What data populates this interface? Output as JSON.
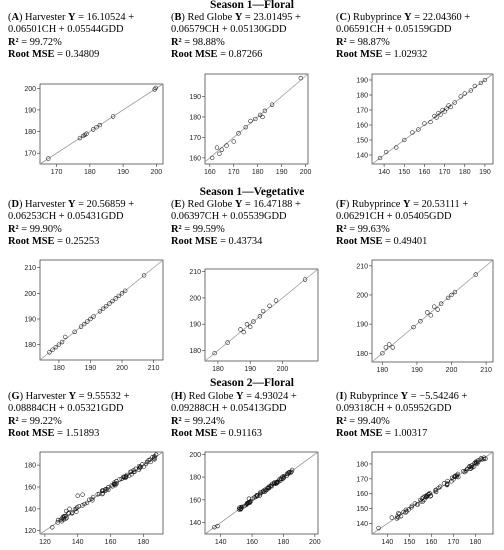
{
  "sections": [
    "Season 1—Floral",
    "Season 1—Vegetative",
    "Season 2—Floral"
  ],
  "chart_data": [
    {
      "id": "A",
      "letter": "A",
      "type": "scatter",
      "cultivar": "Harvester",
      "equation": "16.10524 + 0.06501CH + 0.05544GDD",
      "r2": "99.72%",
      "rmse": "0.34809",
      "xlim": [
        165,
        202
      ],
      "ylim": [
        165,
        202
      ],
      "xticks": [
        170,
        180,
        190,
        200
      ],
      "yticks": [
        170,
        180,
        190,
        200
      ],
      "x": [
        167.5,
        177,
        178,
        178.5,
        179,
        181,
        182,
        183,
        187,
        199.5,
        199.8
      ],
      "y": [
        167.5,
        177,
        178,
        178.5,
        179,
        181,
        182,
        183,
        187,
        199.5,
        200.2
      ]
    },
    {
      "id": "B",
      "letter": "B",
      "type": "scatter",
      "cultivar": "Red Globe",
      "equation": "23.01495 + 0.06579CH + 0.05130GDD",
      "r2": "98.88%",
      "rmse": "0.87266",
      "xlim": [
        158,
        201
      ],
      "ylim": [
        157,
        201
      ],
      "xticks": [
        160,
        170,
        180,
        190,
        200
      ],
      "yticks": [
        160,
        170,
        180,
        190
      ],
      "x": [
        161,
        163,
        164,
        165,
        167,
        170,
        172,
        175,
        177,
        179,
        181,
        182,
        183,
        186,
        198
      ],
      "y": [
        160,
        165,
        162,
        164,
        166,
        168,
        172,
        175,
        178,
        179,
        181,
        180,
        183,
        186,
        199
      ]
    },
    {
      "id": "C",
      "letter": "C",
      "type": "scatter",
      "cultivar": "Rubyprince",
      "equation": "22.04360 + 0.06591CH + 0.05159GDD",
      "r2": "98.87%",
      "rmse": "1.02932",
      "xlim": [
        134,
        194
      ],
      "ylim": [
        134,
        194
      ],
      "xticks": [
        140,
        150,
        160,
        170,
        180,
        190
      ],
      "yticks": [
        140,
        150,
        160,
        170,
        180,
        190
      ],
      "x": [
        138,
        141,
        146,
        150,
        154,
        157,
        160,
        163,
        165,
        166,
        167,
        168,
        169,
        170,
        171,
        172,
        173,
        175,
        178,
        180,
        183,
        185,
        188,
        190
      ],
      "y": [
        138,
        142,
        145,
        150,
        155,
        157,
        161,
        162,
        166,
        165,
        168,
        167,
        170,
        169,
        171,
        173,
        172,
        175,
        179,
        181,
        183,
        186,
        188,
        190
      ]
    },
    {
      "id": "D",
      "letter": "D",
      "type": "scatter",
      "cultivar": "Harvester",
      "equation": "20.56859 + 0.06253CH + 0.05431GDD",
      "r2": "99.90%",
      "rmse": "0.25253",
      "xlim": [
        174,
        213
      ],
      "ylim": [
        174,
        213
      ],
      "xticks": [
        180,
        190,
        200,
        210
      ],
      "yticks": [
        180,
        190,
        200,
        210
      ],
      "x": [
        177,
        178,
        179,
        180,
        181,
        182,
        185,
        187,
        188,
        189,
        190,
        191,
        193,
        194,
        195,
        196,
        197,
        198,
        199,
        200,
        201,
        207
      ],
      "y": [
        177,
        178,
        179,
        180,
        181,
        183,
        185,
        187,
        188,
        189,
        190,
        191,
        193,
        194,
        195,
        196,
        197,
        198,
        199,
        200,
        201,
        207
      ]
    },
    {
      "id": "E",
      "letter": "E",
      "type": "scatter",
      "cultivar": "Red Globe",
      "equation": "16.47188 + 0.06397CH + 0.05539GDD",
      "r2": "99.59%",
      "rmse": "0.43734",
      "xlim": [
        176,
        211
      ],
      "ylim": [
        176,
        211
      ],
      "xticks": [
        180,
        190,
        200
      ],
      "yticks": [
        180,
        190,
        200,
        210
      ],
      "x": [
        179,
        183,
        187,
        188,
        189,
        190,
        191,
        193,
        194,
        196,
        198,
        207
      ],
      "y": [
        179,
        183,
        188,
        187,
        190,
        189,
        191,
        193,
        195,
        197,
        199,
        207
      ]
    },
    {
      "id": "F",
      "letter": "F",
      "type": "scatter",
      "cultivar": "Rubyprince",
      "equation": "20.53111 + 0.06291CH + 0.05405GDD",
      "r2": "99.63%",
      "rmse": "0.49401",
      "xlim": [
        177,
        212
      ],
      "ylim": [
        177,
        212
      ],
      "xticks": [
        180,
        190,
        200,
        210
      ],
      "yticks": [
        180,
        190,
        200,
        210
      ],
      "x": [
        180,
        181,
        182,
        183,
        189,
        191,
        193,
        194,
        195,
        196,
        197,
        199,
        200,
        201,
        207
      ],
      "y": [
        180,
        182,
        183,
        182,
        189,
        191,
        194,
        193,
        196,
        195,
        197,
        199,
        200,
        201,
        207
      ]
    },
    {
      "id": "G",
      "letter": "G",
      "type": "scatter",
      "cultivar": "Harvester",
      "equation": "9.55532 + 0.08884CH + 0.05321GDD",
      "r2": "99.22%",
      "rmse": "1.51893",
      "xlim": [
        117,
        192
      ],
      "ylim": [
        117,
        192
      ],
      "xticks": [
        120,
        140,
        160,
        180
      ],
      "yticks": [
        120,
        140,
        160,
        180
      ],
      "dense_range": [
        124,
        188
      ],
      "dense_count": 90,
      "dense_spread": 1.8,
      "extra_x": [
        133,
        135,
        140,
        143
      ],
      "extra_y": [
        138,
        140,
        152,
        153
      ]
    },
    {
      "id": "H",
      "letter": "H",
      "type": "scatter",
      "cultivar": "Red Globe",
      "equation": "4.93024 + 0.09288CH + 0.05413GDD",
      "r2": "99.24%",
      "rmse": "0.91163",
      "xlim": [
        130,
        202
      ],
      "ylim": [
        130,
        202
      ],
      "xticks": [
        140,
        160,
        180,
        200
      ],
      "yticks": [
        140,
        160,
        180,
        200
      ],
      "dense_range": [
        150,
        186
      ],
      "dense_count": 75,
      "dense_spread": 1.2,
      "extra_x": [
        136,
        138,
        158
      ],
      "extra_y": [
        136,
        137,
        161
      ]
    },
    {
      "id": "I",
      "letter": "I",
      "type": "scatter",
      "cultivar": "Rubyprince",
      "equation": "−5.54246 + 0.09318CH + 0.05952GDD",
      "r2": "99.40%",
      "rmse": "1.00317",
      "xlim": [
        133,
        188
      ],
      "ylim": [
        133,
        188
      ],
      "xticks": [
        140,
        150,
        160,
        170,
        180
      ],
      "yticks": [
        140,
        150,
        160,
        170,
        180
      ],
      "dense_range": [
        143,
        186
      ],
      "dense_count": 80,
      "dense_spread": 1.3,
      "extra_x": [
        136,
        142,
        145
      ],
      "extra_y": [
        137,
        144,
        147
      ]
    }
  ]
}
